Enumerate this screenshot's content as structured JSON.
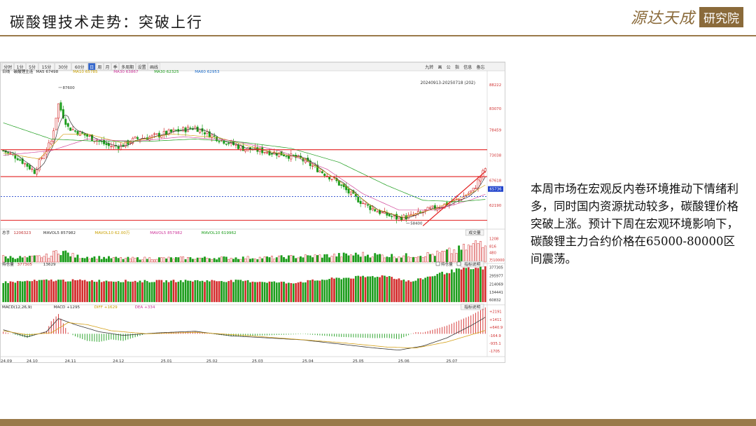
{
  "header": {
    "title": "碳酸锂技术走势：突破上行",
    "logo_script": "源达天成",
    "logo_box": "研究院"
  },
  "description": "本周市场在宏观反内卷环境推动下情绪利多，同时国内资源扰动较多，碳酸锂价格突破上涨。预计下周在宏观环境影响下，碳酸锂主力合约价格在65000-80000区间震荡。",
  "toolbar": {
    "left_items": [
      "分时",
      "1分",
      "5分",
      "15分",
      "30分",
      "60分",
      "日",
      "周",
      "月",
      "季",
      "多周期",
      "设置",
      "画线"
    ],
    "right_items": [
      "九转",
      "画",
      "公",
      "指",
      "信息",
      "备忘"
    ]
  },
  "colors": {
    "up": "#d22a2a",
    "down": "#1a9c1a",
    "ma5": "#333333",
    "ma10": "#d4a017",
    "ma30": "#d2489a",
    "ma60": "#1a9c1a",
    "level": "#e22020",
    "dashed": "#2244cc"
  },
  "chart_data": [
    {
      "type": "candlestick",
      "panel": "price",
      "header": {
        "label": "日线",
        "name": "碳酸锂主连",
        "items": [
          {
            "label": "MA5",
            "value": "67498"
          },
          {
            "label": "MA10",
            "value": "65785"
          },
          {
            "label": "MA30",
            "value": "63867"
          },
          {
            "label": "MA30",
            "value": "62325"
          },
          {
            "label": "MA60",
            "value": "62953"
          }
        ]
      },
      "date_range": "20240913-20250718 (202)",
      "y_ticks": [
        "88222",
        "83070",
        "78459",
        "73038",
        "67618",
        "62190"
      ],
      "ylim": [
        58000,
        90000
      ],
      "highlight_price": "65736",
      "annotations": [
        {
          "text": "87600",
          "price": 87600,
          "index": 23
        },
        {
          "text": "58400",
          "price": 58400,
          "index": 168
        }
      ],
      "levels": [
        74200,
        68400,
        59000
      ],
      "dashed_level": 64100,
      "x_tick_labels": [
        "24.09",
        "24.10",
        "24.11",
        "24.12",
        "25.01",
        "25.02",
        "25.03",
        "25.04",
        "25.05",
        "25.06",
        "25.07"
      ],
      "x_tick_index": [
        0,
        12,
        28,
        48,
        68,
        87,
        106,
        127,
        148,
        167,
        187
      ],
      "n_bars": 202,
      "close_keypoints": [
        [
          0,
          74000
        ],
        [
          6,
          72500
        ],
        [
          13,
          69500
        ],
        [
          16,
          72500
        ],
        [
          20,
          76000
        ],
        [
          23,
          84000
        ],
        [
          27,
          79000
        ],
        [
          31,
          78000
        ],
        [
          38,
          76500
        ],
        [
          44,
          75000
        ],
        [
          49,
          75000
        ],
        [
          55,
          76500
        ],
        [
          62,
          77000
        ],
        [
          70,
          78000
        ],
        [
          80,
          79000
        ],
        [
          90,
          76500
        ],
        [
          100,
          74500
        ],
        [
          110,
          73800
        ],
        [
          117,
          73200
        ],
        [
          124,
          72200
        ],
        [
          131,
          70000
        ],
        [
          138,
          67800
        ],
        [
          145,
          64500
        ],
        [
          152,
          62000
        ],
        [
          158,
          60500
        ],
        [
          164,
          59500
        ],
        [
          170,
          59800
        ],
        [
          176,
          61000
        ],
        [
          183,
          62200
        ],
        [
          190,
          63500
        ],
        [
          196,
          65500
        ],
        [
          201,
          70200
        ]
      ],
      "ma_keypoints": {
        "MA10": [
          [
            0,
            73500
          ],
          [
            15,
            72200
          ],
          [
            25,
            77500
          ],
          [
            35,
            77600
          ],
          [
            50,
            75600
          ],
          [
            70,
            77600
          ],
          [
            90,
            76800
          ],
          [
            110,
            73900
          ],
          [
            125,
            72400
          ],
          [
            140,
            67500
          ],
          [
            155,
            61500
          ],
          [
            167,
            59600
          ],
          [
            180,
            61500
          ],
          [
            195,
            64800
          ],
          [
            201,
            66600
          ]
        ],
        "MA30": [
          [
            0,
            73000
          ],
          [
            20,
            74000
          ],
          [
            35,
            76500
          ],
          [
            55,
            76000
          ],
          [
            75,
            77000
          ],
          [
            95,
            76200
          ],
          [
            115,
            74000
          ],
          [
            135,
            70000
          ],
          [
            150,
            64700
          ],
          [
            165,
            61200
          ],
          [
            180,
            61200
          ],
          [
            195,
            63400
          ],
          [
            201,
            64600
          ]
        ],
        "MA60": [
          [
            0,
            80000
          ],
          [
            20,
            76500
          ],
          [
            40,
            76000
          ],
          [
            60,
            76000
          ],
          [
            80,
            76500
          ],
          [
            100,
            75800
          ],
          [
            120,
            74500
          ],
          [
            140,
            71500
          ],
          [
            160,
            66500
          ],
          [
            175,
            63300
          ],
          [
            190,
            63000
          ],
          [
            201,
            63500
          ]
        ]
      },
      "trendline": {
        "from": [
          175,
          57800
        ],
        "to": [
          201,
          69500
        ]
      }
    },
    {
      "type": "bar",
      "panel": "volume",
      "header": {
        "label": "总手",
        "value": "1206323",
        "items": [
          {
            "label": "MAVOL5",
            "value": "857982"
          },
          {
            "label": "MAVOL10",
            "value": "62.00万"
          },
          {
            "label": "MAVOL5",
            "value": "857982"
          },
          {
            "label": "MAVOL10",
            "value": "619962"
          }
        ],
        "button": "成交量"
      },
      "y_ticks": [
        "1208",
        "816",
        "480",
        "万10000"
      ],
      "ylim": [
        0,
        125
      ],
      "value_keypoints": [
        [
          0,
          26
        ],
        [
          10,
          22
        ],
        [
          20,
          32
        ],
        [
          23,
          62
        ],
        [
          30,
          28
        ],
        [
          50,
          18
        ],
        [
          80,
          20
        ],
        [
          110,
          22
        ],
        [
          130,
          30
        ],
        [
          150,
          38
        ],
        [
          165,
          30
        ],
        [
          180,
          40
        ],
        [
          190,
          60
        ],
        [
          196,
          82
        ],
        [
          201,
          120
        ]
      ]
    },
    {
      "type": "bar",
      "panel": "open_interest",
      "header": {
        "label": "持仓量",
        "value": "377305",
        "items": [
          {
            "label": "",
            "value": "13629"
          }
        ],
        "checkbox_labels": [
          "持仓量",
          "仓差"
        ],
        "button": "指标说明"
      },
      "y_ticks": [
        "377305",
        "295977",
        "214069",
        "134441",
        "60832"
      ],
      "ylim": [
        40000,
        380000
      ],
      "value_keypoints": [
        [
          0,
          235000
        ],
        [
          20,
          255000
        ],
        [
          40,
          250000
        ],
        [
          60,
          245000
        ],
        [
          80,
          250000
        ],
        [
          100,
          248000
        ],
        [
          120,
          230000
        ],
        [
          140,
          275000
        ],
        [
          160,
          300000
        ],
        [
          170,
          240000
        ],
        [
          176,
          280000
        ],
        [
          182,
          320000
        ],
        [
          190,
          360000
        ],
        [
          201,
          377305
        ]
      ]
    },
    {
      "type": "line",
      "panel": "macd",
      "header": {
        "label": "MACD(12,26,9)",
        "items": [
          {
            "label": "MACD",
            "value": "+1295"
          },
          {
            "label": "DIFF",
            "value": "+1629"
          },
          {
            "label": "DEA",
            "value": "+334"
          }
        ],
        "button": "指标说明"
      },
      "y_ticks": [
        "+2191",
        "+1411",
        "+640.9",
        "-164.9",
        "-935.1",
        "-1705"
      ],
      "ylim": [
        -1900,
        2300
      ],
      "diff_keypoints": [
        [
          0,
          400
        ],
        [
          10,
          -300
        ],
        [
          18,
          200
        ],
        [
          23,
          1500
        ],
        [
          30,
          900
        ],
        [
          40,
          200
        ],
        [
          50,
          -150
        ],
        [
          65,
          100
        ],
        [
          80,
          250
        ],
        [
          95,
          -200
        ],
        [
          110,
          -400
        ],
        [
          125,
          -600
        ],
        [
          140,
          -1000
        ],
        [
          155,
          -1400
        ],
        [
          165,
          -1600
        ],
        [
          175,
          -1200
        ],
        [
          185,
          -400
        ],
        [
          195,
          800
        ],
        [
          201,
          1629
        ]
      ],
      "dea_keypoints": [
        [
          0,
          300
        ],
        [
          10,
          -100
        ],
        [
          20,
          100
        ],
        [
          27,
          1100
        ],
        [
          35,
          900
        ],
        [
          45,
          300
        ],
        [
          60,
          0
        ],
        [
          80,
          150
        ],
        [
          100,
          -150
        ],
        [
          120,
          -500
        ],
        [
          140,
          -850
        ],
        [
          160,
          -1300
        ],
        [
          172,
          -1400
        ],
        [
          185,
          -800
        ],
        [
          195,
          -100
        ],
        [
          201,
          334
        ]
      ]
    }
  ]
}
